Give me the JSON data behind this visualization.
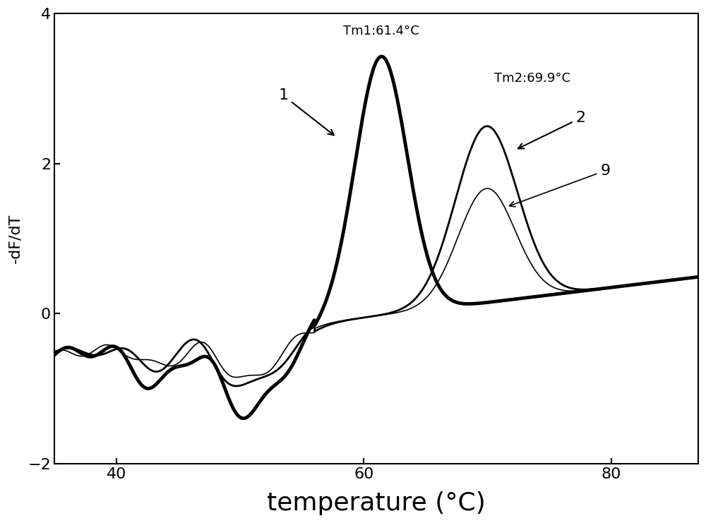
{
  "xlim": [
    35,
    87
  ],
  "ylim": [
    -2,
    4
  ],
  "xlabel": "temperature (°C)",
  "ylabel": "-dF/dT",
  "xlabel_fontsize": 26,
  "ylabel_fontsize": 16,
  "xticks": [
    40,
    60,
    80
  ],
  "yticks": [
    -2,
    0,
    2,
    4
  ],
  "background_color": "#ffffff",
  "curve_color": "#000000",
  "annotation1_text": "Tm1:61.4°C",
  "annotation2_text": "Tm2:69.9°C",
  "label1": "1",
  "label2": "2",
  "label9": "9",
  "curve1_lw": 3.5,
  "curve2_lw": 2.0,
  "curve9_lw": 1.2
}
